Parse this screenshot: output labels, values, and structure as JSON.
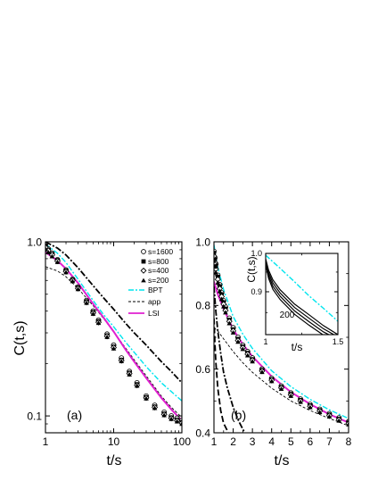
{
  "chart_data": [
    {
      "panel": "(a)",
      "type": "line",
      "xlabel": "t/s",
      "ylabel": "C(t,s)",
      "xscale": "log",
      "yscale": "log",
      "xlim": [
        1,
        100
      ],
      "ylim": [
        0.08,
        1.0
      ],
      "xticks": [
        "1",
        "10",
        "100"
      ],
      "yticks": [
        "0.1",
        "1.0"
      ],
      "legend_position": "top-right",
      "series": [
        {
          "name": "s=1600",
          "kind": "marker",
          "marker": "circle-open",
          "x": [
            1,
            1.1,
            1.25,
            1.5,
            2,
            2.5,
            3,
            4,
            5,
            6,
            8,
            10,
            13,
            17,
            22,
            30,
            40,
            55,
            70,
            85,
            100
          ],
          "y": [
            0.96,
            0.91,
            0.86,
            0.79,
            0.69,
            0.61,
            0.55,
            0.46,
            0.4,
            0.355,
            0.295,
            0.255,
            0.215,
            0.18,
            0.155,
            0.13,
            0.115,
            0.105,
            0.1,
            0.097,
            0.094
          ]
        },
        {
          "name": "s=800",
          "kind": "marker",
          "marker": "square-filled",
          "x": [
            1,
            1.1,
            1.25,
            1.5,
            2,
            2.5,
            3,
            4,
            5,
            6,
            8,
            10,
            13,
            17,
            22,
            30,
            40,
            55,
            70,
            85,
            100
          ],
          "y": [
            0.95,
            0.9,
            0.85,
            0.785,
            0.685,
            0.605,
            0.545,
            0.455,
            0.395,
            0.35,
            0.29,
            0.25,
            0.21,
            0.177,
            0.152,
            0.128,
            0.113,
            0.103,
            0.098,
            0.095,
            0.092
          ]
        },
        {
          "name": "s=400",
          "kind": "marker",
          "marker": "diamond-open",
          "x": [
            1,
            1.1,
            1.25,
            1.5,
            2,
            2.5,
            3,
            4,
            5,
            6,
            8,
            10,
            13,
            17,
            22,
            30,
            40,
            55,
            70,
            85,
            100
          ],
          "y": [
            0.93,
            0.89,
            0.84,
            0.775,
            0.675,
            0.6,
            0.54,
            0.45,
            0.39,
            0.345,
            0.287,
            0.247,
            0.208,
            0.175,
            0.15,
            0.127,
            0.112,
            0.102,
            0.097,
            0.094,
            0.091
          ]
        },
        {
          "name": "s=200",
          "kind": "marker",
          "marker": "triangle-filled",
          "x": [
            1,
            1.1,
            1.25,
            1.5,
            2,
            2.5,
            3,
            4,
            5,
            6,
            8,
            10,
            13,
            17,
            22,
            30,
            40,
            55,
            70,
            85,
            100
          ],
          "y": [
            0.91,
            0.87,
            0.825,
            0.765,
            0.668,
            0.594,
            0.535,
            0.446,
            0.386,
            0.342,
            0.284,
            0.244,
            0.206,
            0.173,
            0.149,
            0.126,
            0.111,
            0.101,
            0.096,
            0.093,
            0.09
          ]
        },
        {
          "name": "BPT",
          "kind": "line",
          "style": "dash-dot",
          "color": "#00e5ee",
          "x": [
            1,
            1.5,
            2,
            3,
            5,
            7,
            10,
            15,
            20,
            30,
            50,
            70,
            100
          ],
          "y": [
            0.97,
            0.86,
            0.76,
            0.61,
            0.46,
            0.385,
            0.325,
            0.265,
            0.232,
            0.192,
            0.155,
            0.138,
            0.122
          ]
        },
        {
          "name": "app",
          "kind": "line",
          "style": "dashed",
          "color": "#000000",
          "x": [
            1,
            1.5,
            2,
            3,
            5,
            7,
            10,
            15,
            20,
            30,
            50,
            70,
            100
          ],
          "y": [
            0.72,
            0.68,
            0.63,
            0.54,
            0.43,
            0.365,
            0.305,
            0.245,
            0.21,
            0.17,
            0.13,
            0.112,
            0.098
          ]
        },
        {
          "name": "LSI",
          "kind": "line",
          "style": "solid",
          "color": "#e020d0",
          "x": [
            1,
            1.5,
            2,
            3,
            5,
            7,
            10,
            15,
            20,
            30,
            50,
            70,
            100
          ],
          "y": [
            0.87,
            0.78,
            0.7,
            0.58,
            0.44,
            0.37,
            0.305,
            0.24,
            0.205,
            0.165,
            0.127,
            0.109,
            0.094
          ]
        },
        {
          "name": "",
          "kind": "line",
          "style": "dash-dot-bold",
          "color": "#000000",
          "x": [
            1,
            1.5,
            2,
            3,
            5,
            7,
            10,
            15,
            20,
            30,
            50,
            70,
            100
          ],
          "y": [
            1.0,
            0.92,
            0.84,
            0.71,
            0.56,
            0.48,
            0.41,
            0.34,
            0.3,
            0.255,
            0.205,
            0.18,
            0.155
          ]
        }
      ]
    },
    {
      "panel": "(b)",
      "type": "line",
      "xlabel": "t/s",
      "ylabel": "",
      "xscale": "linear",
      "yscale": "linear",
      "xlim": [
        1,
        8
      ],
      "ylim": [
        0.4,
        1.0
      ],
      "xticks": [
        "1",
        "2",
        "3",
        "4",
        "5",
        "6",
        "7",
        "8"
      ],
      "yticks": [
        "0.4",
        "0.6",
        "0.8",
        "1.0"
      ],
      "series": [
        {
          "name": "s=1600",
          "kind": "marker",
          "marker": "circle-open",
          "x": [
            1,
            1.05,
            1.1,
            1.2,
            1.3,
            1.4,
            1.5,
            1.6,
            1.8,
            2,
            2.25,
            2.5,
            2.75,
            3,
            3.5,
            4,
            4.5,
            5,
            5.5,
            6,
            6.5,
            7,
            7.5,
            8
          ],
          "y": [
            0.97,
            0.95,
            0.93,
            0.895,
            0.865,
            0.84,
            0.815,
            0.795,
            0.76,
            0.73,
            0.7,
            0.675,
            0.655,
            0.635,
            0.6,
            0.571,
            0.547,
            0.525,
            0.506,
            0.489,
            0.474,
            0.46,
            0.447,
            0.435
          ]
        },
        {
          "name": "s=800",
          "kind": "marker",
          "marker": "square-filled",
          "x": [
            1,
            1.05,
            1.1,
            1.2,
            1.3,
            1.4,
            1.5,
            1.6,
            1.8,
            2,
            2.25,
            2.5,
            2.75,
            3,
            3.5,
            4,
            4.5,
            5,
            5.5,
            6,
            6.5,
            7,
            7.5,
            8
          ],
          "y": [
            0.965,
            0.945,
            0.925,
            0.89,
            0.86,
            0.835,
            0.81,
            0.79,
            0.755,
            0.725,
            0.695,
            0.671,
            0.651,
            0.631,
            0.597,
            0.568,
            0.544,
            0.522,
            0.503,
            0.486,
            0.471,
            0.457,
            0.444,
            0.432
          ]
        },
        {
          "name": "s=400",
          "kind": "marker",
          "marker": "diamond-open",
          "x": [
            1,
            1.05,
            1.1,
            1.2,
            1.3,
            1.4,
            1.5,
            1.6,
            1.8,
            2,
            2.25,
            2.5,
            2.75,
            3,
            3.5,
            4,
            4.5,
            5,
            5.5,
            6,
            6.5,
            7,
            7.5,
            8
          ],
          "y": [
            0.955,
            0.935,
            0.915,
            0.882,
            0.853,
            0.828,
            0.804,
            0.784,
            0.75,
            0.72,
            0.69,
            0.667,
            0.647,
            0.628,
            0.594,
            0.565,
            0.541,
            0.519,
            0.5,
            0.483,
            0.468,
            0.454,
            0.441,
            0.429
          ]
        },
        {
          "name": "s=200",
          "kind": "marker",
          "marker": "triangle-filled",
          "x": [
            1,
            1.05,
            1.1,
            1.2,
            1.3,
            1.4,
            1.5,
            1.6,
            1.8,
            2,
            2.25,
            2.5,
            2.75,
            3,
            3.5,
            4,
            4.5,
            5,
            5.5,
            6,
            6.5,
            7,
            7.5,
            8
          ],
          "y": [
            0.94,
            0.922,
            0.903,
            0.872,
            0.845,
            0.82,
            0.797,
            0.778,
            0.744,
            0.715,
            0.686,
            0.663,
            0.643,
            0.624,
            0.591,
            0.562,
            0.538,
            0.516,
            0.497,
            0.48,
            0.465,
            0.451,
            0.438,
            0.426
          ]
        },
        {
          "name": "BPT",
          "kind": "line",
          "style": "dash-dot",
          "color": "#00e5ee",
          "x": [
            1,
            1.2,
            1.5,
            2,
            2.5,
            3,
            4,
            5,
            6,
            7,
            8
          ],
          "y": [
            0.99,
            0.92,
            0.85,
            0.765,
            0.71,
            0.665,
            0.595,
            0.545,
            0.505,
            0.472,
            0.445
          ]
        },
        {
          "name": "app",
          "kind": "line",
          "style": "dashed",
          "color": "#000000",
          "x": [
            1,
            1.2,
            1.5,
            2,
            2.5,
            3,
            4,
            5,
            6,
            7,
            8
          ],
          "y": [
            0.73,
            0.72,
            0.695,
            0.655,
            0.62,
            0.59,
            0.54,
            0.5,
            0.47,
            0.445,
            0.422
          ]
        },
        {
          "name": "LSI",
          "kind": "line",
          "style": "solid",
          "color": "#e020d0",
          "x": [
            1,
            1.2,
            1.5,
            2,
            2.5,
            3,
            4,
            5,
            6,
            7,
            8
          ],
          "y": [
            0.875,
            0.835,
            0.79,
            0.725,
            0.678,
            0.64,
            0.577,
            0.528,
            0.49,
            0.458,
            0.432
          ]
        },
        {
          "name": "",
          "kind": "line",
          "style": "dash-dot-bold",
          "color": "#000000",
          "x": [
            1,
            1.1,
            1.2,
            1.35,
            1.5,
            1.7,
            2,
            2.3,
            2.6
          ],
          "y": [
            0.86,
            0.78,
            0.72,
            0.65,
            0.59,
            0.54,
            0.48,
            0.435,
            0.4
          ]
        },
        {
          "name": "",
          "kind": "line",
          "style": "dash-bold",
          "color": "#000000",
          "x": [
            1,
            1.05,
            1.1,
            1.2,
            1.35,
            1.5,
            1.75
          ],
          "y": [
            0.76,
            0.68,
            0.62,
            0.54,
            0.47,
            0.43,
            0.4
          ]
        }
      ],
      "inset": {
        "type": "line",
        "xlabel": "t/s",
        "ylabel": "C(t,s)",
        "xscale": "linear",
        "yscale": "log",
        "xlim": [
          1,
          1.5
        ],
        "ylim": [
          0.8,
          1.0
        ],
        "xticks": [
          "1",
          "1.5"
        ],
        "yticks": [
          "0.9",
          "1.0"
        ],
        "annotation": "200",
        "series": [
          {
            "name": "",
            "kind": "line",
            "style": "dash-dot",
            "color": "#00e5ee",
            "x": [
              1,
              1.1,
              1.2,
              1.3,
              1.4,
              1.5
            ],
            "y": [
              0.995,
              0.96,
              0.925,
              0.89,
              0.86,
              0.83
            ]
          },
          {
            "name": "",
            "kind": "line",
            "style": "solid",
            "color": "#000000",
            "x": [
              1,
              1.02,
              1.05,
              1.1,
              1.2,
              1.3,
              1.4,
              1.5
            ],
            "y": [
              0.985,
              0.955,
              0.93,
              0.905,
              0.87,
              0.845,
              0.82,
              0.8
            ]
          },
          {
            "name": "",
            "kind": "line",
            "style": "solid",
            "color": "#000000",
            "x": [
              1,
              1.02,
              1.05,
              1.1,
              1.2,
              1.3,
              1.4,
              1.5
            ],
            "y": [
              0.98,
              0.948,
              0.922,
              0.897,
              0.862,
              0.837,
              0.813,
              0.795
            ]
          },
          {
            "name": "",
            "kind": "line",
            "style": "solid",
            "color": "#000000",
            "x": [
              1,
              1.02,
              1.05,
              1.1,
              1.2,
              1.3,
              1.4,
              1.5
            ],
            "y": [
              0.975,
              0.941,
              0.914,
              0.889,
              0.854,
              0.829,
              0.806,
              0.79
            ]
          },
          {
            "name": "",
            "kind": "line",
            "style": "solid",
            "color": "#000000",
            "x": [
              1,
              1.02,
              1.05,
              1.1,
              1.2,
              1.3,
              1.4,
              1.5
            ],
            "y": [
              0.97,
              0.934,
              0.906,
              0.881,
              0.846,
              0.821,
              0.799,
              0.785
            ]
          }
        ]
      }
    }
  ],
  "labels": {
    "ylabel_a": "C(t,s)",
    "xlabel_a": "t/s",
    "xlabel_b": "t/s",
    "panel_a": "(a)",
    "panel_b": "(b)",
    "inset_ylabel": "C(t,s)",
    "inset_xlabel": "t/s",
    "inset_annotation": "200",
    "legend": [
      "s=1600",
      "s=800",
      "s=400",
      "s=200",
      "BPT",
      "app",
      "LSI"
    ]
  }
}
